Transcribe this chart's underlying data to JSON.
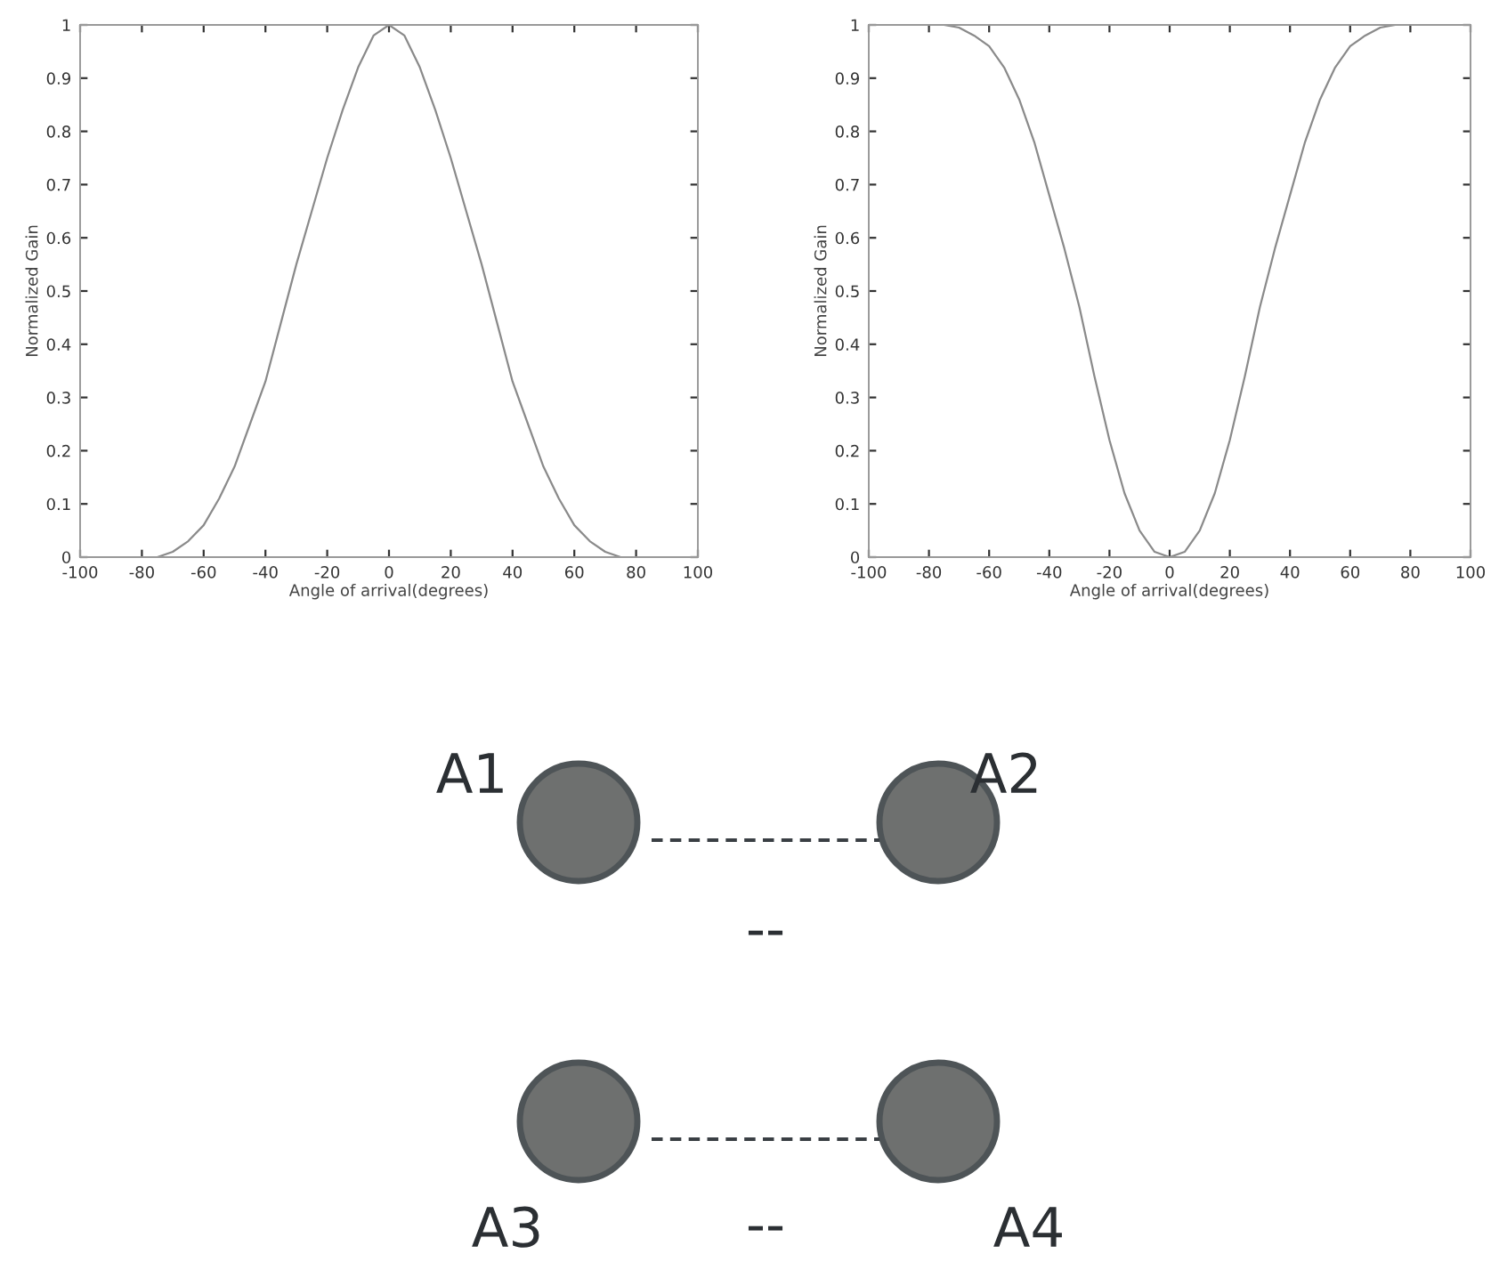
{
  "chart_data": [
    {
      "type": "line",
      "xlabel": "Angle of arrival(degrees)",
      "ylabel": "Normalized Gain",
      "xlim": [
        -100,
        100
      ],
      "ylim": [
        0,
        1
      ],
      "xticks": [
        -100,
        -80,
        -60,
        -40,
        -20,
        0,
        20,
        40,
        60,
        80,
        100
      ],
      "yticks": [
        0,
        0.1,
        0.2,
        0.3,
        0.4,
        0.5,
        0.6,
        0.7,
        0.8,
        0.9,
        1
      ],
      "grid": false,
      "legend": false,
      "series": [
        {
          "color": "#8a8a8a",
          "x": [
            -90,
            -80,
            -75,
            -70,
            -65,
            -60,
            -55,
            -50,
            -45,
            -40,
            -35,
            -30,
            -25,
            -20,
            -15,
            -10,
            -5,
            0,
            5,
            10,
            15,
            20,
            25,
            30,
            35,
            40,
            45,
            50,
            55,
            60,
            65,
            70,
            75,
            80,
            90
          ],
          "values": [
            0,
            0,
            0,
            0.01,
            0.03,
            0.06,
            0.11,
            0.17,
            0.25,
            0.33,
            0.44,
            0.55,
            0.65,
            0.75,
            0.84,
            0.92,
            0.98,
            1,
            0.98,
            0.92,
            0.84,
            0.75,
            0.65,
            0.55,
            0.44,
            0.33,
            0.25,
            0.17,
            0.11,
            0.06,
            0.03,
            0.01,
            0,
            0,
            0
          ]
        }
      ]
    },
    {
      "type": "line",
      "xlabel": "Angle of arrival(degrees)",
      "ylabel": "Normalized Gain",
      "xlim": [
        -100,
        100
      ],
      "ylim": [
        0,
        1
      ],
      "xticks": [
        -100,
        -80,
        -60,
        -40,
        -20,
        0,
        20,
        40,
        60,
        80,
        100
      ],
      "yticks": [
        0,
        0.1,
        0.2,
        0.3,
        0.4,
        0.5,
        0.6,
        0.7,
        0.8,
        0.9,
        1
      ],
      "grid": false,
      "legend": false,
      "series": [
        {
          "color": "#8a8a8a",
          "x": [
            -90,
            -75,
            -70,
            -65,
            -60,
            -55,
            -50,
            -45,
            -40,
            -35,
            -30,
            -25,
            -20,
            -15,
            -10,
            -5,
            0,
            5,
            10,
            15,
            20,
            25,
            30,
            35,
            40,
            45,
            50,
            55,
            60,
            65,
            70,
            75,
            90
          ],
          "values": [
            1,
            1,
            0.995,
            0.98,
            0.96,
            0.92,
            0.86,
            0.78,
            0.68,
            0.58,
            0.47,
            0.34,
            0.22,
            0.12,
            0.05,
            0.01,
            0,
            0.01,
            0.05,
            0.12,
            0.22,
            0.34,
            0.47,
            0.58,
            0.68,
            0.78,
            0.86,
            0.92,
            0.96,
            0.98,
            0.995,
            1,
            1
          ]
        }
      ]
    },
    {
      "type": "other",
      "annotations": [
        "A1",
        "A2",
        "A3",
        "A4",
        "--",
        "--"
      ]
    }
  ]
}
